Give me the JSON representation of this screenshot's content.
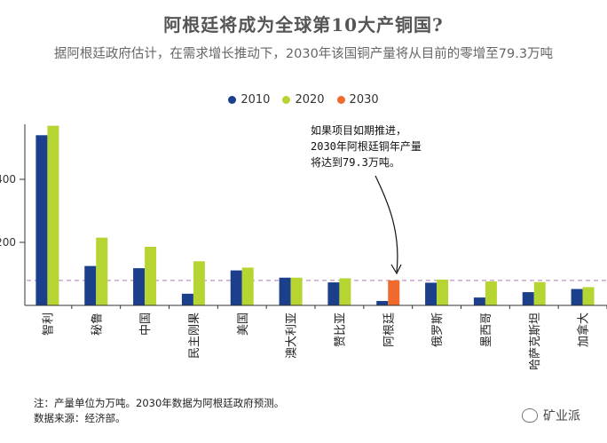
{
  "chart_data": {
    "type": "bar",
    "title": "阿根廷将成为全球第10大产铜国?",
    "subtitle": "据阿根廷政府估计，在需求增长推动下，2030年该国铜产量将从目前的零增至79.3万吨",
    "categories": [
      "智利",
      "秘鲁",
      "中国",
      "民主刚果",
      "美国",
      "澳大利亚",
      "赞比亚",
      "阿根廷",
      "俄罗斯",
      "墨西哥",
      "哈萨克斯坦",
      "加拿大"
    ],
    "series": [
      {
        "name": "2010",
        "color": "#1b3f8b",
        "values": [
          540,
          125,
          118,
          37,
          111,
          88,
          73,
          14,
          72,
          25,
          42,
          52
        ]
      },
      {
        "name": "2020",
        "color": "#b6d532",
        "values": [
          570,
          215,
          186,
          140,
          120,
          88,
          86,
          0,
          82,
          76,
          74,
          58
        ]
      },
      {
        "name": "2030",
        "color": "#ef6a2c",
        "values": [
          null,
          null,
          null,
          null,
          null,
          null,
          null,
          79.3,
          null,
          null,
          null,
          null
        ]
      }
    ],
    "yticks": [
      200,
      400
    ],
    "ylim": [
      0,
      600
    ],
    "reference_line": 79.3,
    "annotation": "如果项目如期推进，2030年阿根廷铜年产量将达到79.3万吨。"
  },
  "notes": {
    "line1": "注：产量单位为万吨。2030年数据为阿根廷政府预测。",
    "line2": "数据来源：经济部。"
  },
  "watermark": "矿业派",
  "colors": {
    "title": "#555555",
    "reference_line": "#b07ab8",
    "axis": "#333333"
  }
}
